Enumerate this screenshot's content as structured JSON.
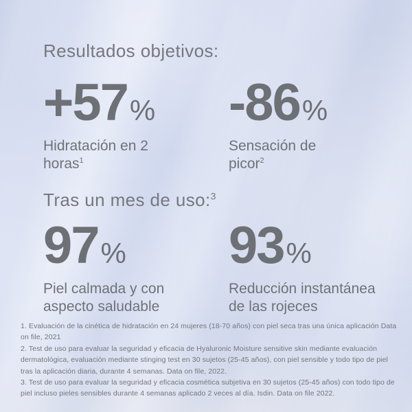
{
  "colors": {
    "background_base": "#d2daef",
    "text_gray": "#6f7277",
    "number_gray": "#6d7075"
  },
  "objective_results": {
    "heading": "Resultados objetivos:",
    "stats": [
      {
        "number": "+57",
        "unit": "%",
        "line1": "Hidratación en 2",
        "line2": "horas",
        "sup": "1"
      },
      {
        "number": "-86",
        "unit": "%",
        "line1": "Sensación de",
        "line2": "picor",
        "sup": "2"
      }
    ]
  },
  "after_one_month": {
    "heading": "Tras un mes de uso:",
    "heading_sup": "3",
    "stats": [
      {
        "number": "97",
        "unit": "%",
        "line1": "Piel calmada y con",
        "line2": "aspecto saludable",
        "sup": ""
      },
      {
        "number": "93",
        "unit": "%",
        "line1": "Reducción instantánea",
        "line2": "de las rojeces",
        "sup": ""
      }
    ]
  },
  "footnotes": [
    "1. Evaluación de la cinética de hidratación en 24 mujeres (18-70 años) con piel seca tras una única aplicación Data on file, 2021",
    "2. Test de uso para evaluar la seguridad y eficacia de Hyaluronic Moisture sensitive skin mediante evaluación dermatológica, evaluación mediante stinging test en 30 sujetos (25-45 años), con piel sensible y todo tipo de piel tras la aplicación diaria, durante 4 semanas. Data on file, 2022.",
    "3. Test de uso para evaluar la  seguridad y eficacia cosmética subjetiva en 30 sujetos (25-45 años) con todo tipo de piel incluso pieles sensibles durante 4 semanas aplicado 2 veces al día. Isdin. Data on file 2022."
  ]
}
